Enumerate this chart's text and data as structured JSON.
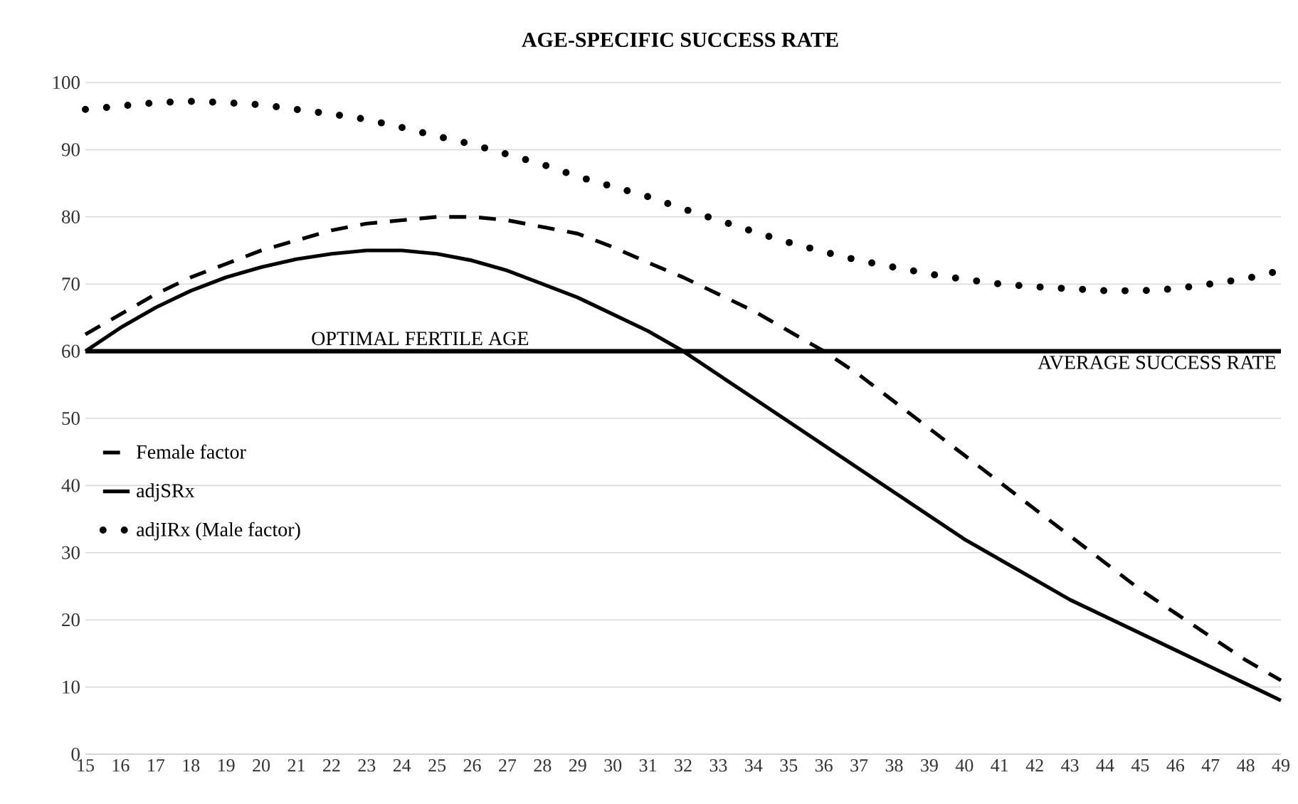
{
  "chart_data": {
    "type": "line",
    "title": "AGE-SPECIFIC SUCCESS RATE",
    "categories": [
      "15",
      "16",
      "17",
      "18",
      "19",
      "20",
      "21",
      "22",
      "23",
      "24",
      "25",
      "26",
      "27",
      "28",
      "29",
      "30",
      "31",
      "32",
      "33",
      "34",
      "35",
      "36",
      "37",
      "38",
      "39",
      "40",
      "41",
      "42",
      "43",
      "44",
      "45",
      "46",
      "47",
      "48",
      "49"
    ],
    "series": [
      {
        "name": "Female factor",
        "color": "#000000",
        "line_style": "dashed",
        "values": [
          62.5,
          65.5,
          68.5,
          71,
          73,
          75,
          76.5,
          78,
          79,
          79.5,
          80,
          80,
          79.5,
          78.5,
          77.5,
          75.5,
          73.2,
          71,
          68.5,
          66,
          63,
          60,
          56.5,
          52.5,
          48.5,
          44.5,
          40.5,
          36.5,
          32.5,
          28.5,
          24.5,
          21,
          17.5,
          14,
          11
        ]
      },
      {
        "name": "adjSRx",
        "color": "#000000",
        "line_style": "solid",
        "values": [
          60,
          63.5,
          66.5,
          69,
          71,
          72.5,
          73.7,
          74.5,
          75,
          75,
          74.5,
          73.5,
          72,
          70,
          68,
          65.5,
          63,
          60,
          56.5,
          53,
          49.5,
          46,
          42.5,
          39,
          35.5,
          32,
          29,
          26,
          23,
          20.5,
          18,
          15.5,
          13,
          10.5,
          8
        ]
      },
      {
        "name": "adjIRx (Male factor)",
        "color": "#000000",
        "line_style": "dotted",
        "values": [
          96,
          96.5,
          97,
          97.2,
          97,
          96.7,
          96,
          95.3,
          94.5,
          93.3,
          92,
          90.8,
          89.3,
          87.8,
          86,
          84.5,
          83,
          81.2,
          79.5,
          77.8,
          76.2,
          74.8,
          73.5,
          72.5,
          71.5,
          70.7,
          70,
          69.6,
          69.3,
          69,
          69,
          69.3,
          70,
          70.8,
          72
        ]
      }
    ],
    "ylim": [
      0,
      100
    ],
    "yticks": [
      0,
      10,
      20,
      30,
      40,
      50,
      60,
      70,
      80,
      90,
      100
    ],
    "grid": "y",
    "legend": "left",
    "marker": "none",
    "ref_lines": [
      {
        "axis": "y",
        "value": 60,
        "label": "AVERAGE SUCCESS RATE",
        "color": "#000000"
      }
    ],
    "annotations": [
      "OPTIMAL FERTILE AGE"
    ]
  }
}
